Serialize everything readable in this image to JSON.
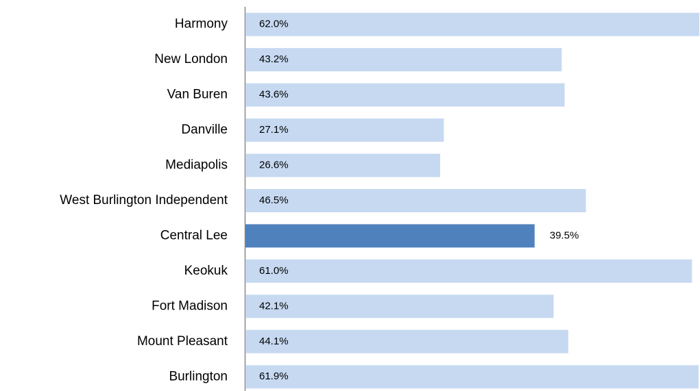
{
  "chart_data": {
    "type": "barh",
    "categories": [
      "Harmony",
      "New London",
      "Van Buren",
      "Danville",
      "Mediapolis",
      "West Burlington Independent",
      "Central Lee",
      "Keokuk",
      "Fort Madison",
      "Mount Pleasant",
      "Burlington"
    ],
    "values": [
      62.0,
      43.2,
      43.6,
      27.1,
      26.6,
      46.5,
      39.5,
      61.0,
      42.1,
      44.1,
      61.9
    ],
    "value_labels": [
      "62.0%",
      "43.2%",
      "43.6%",
      "27.1%",
      "26.6%",
      "46.5%",
      "39.5%",
      "61.0%",
      "42.1%",
      "44.1%",
      "61.9%"
    ],
    "value_label_positions": [
      "inside",
      "inside",
      "inside",
      "inside",
      "inside",
      "inside",
      "outside",
      "inside",
      "inside",
      "inside",
      "inside"
    ],
    "colors": [
      "#c6d9f1",
      "#c6d9f1",
      "#c6d9f1",
      "#c6d9f1",
      "#c6d9f1",
      "#c6d9f1",
      "#4f81bd",
      "#c6d9f1",
      "#c6d9f1",
      "#c6d9f1",
      "#c6d9f1"
    ],
    "xlim": [
      0,
      62
    ]
  }
}
